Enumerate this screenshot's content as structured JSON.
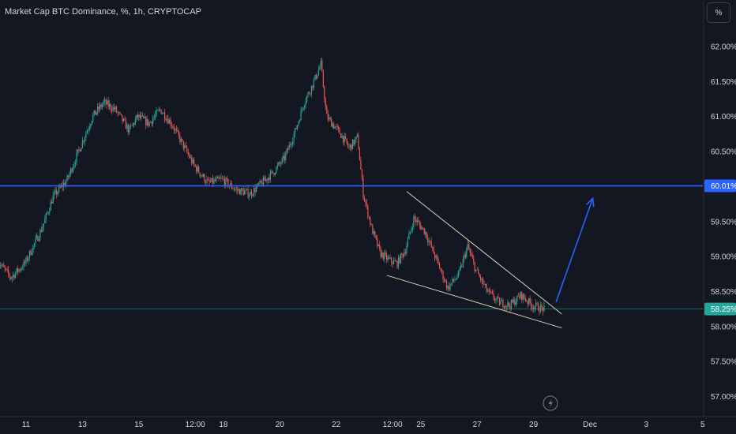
{
  "header": {
    "title": "Market Cap BTC Dominance, %, 1h, CRYPTOCAP"
  },
  "price_axis": {
    "unit_label": "%"
  },
  "colors": {
    "background": "#131722",
    "up": "#26a69a",
    "down": "#ef5350",
    "resistance_line": "#2962ff",
    "current_price_line": "#26a69a",
    "wedge_lines": "#d6cfb0",
    "arrow": "#2962ff",
    "grid": "#1e222d"
  },
  "icons": {
    "bottom": "lightning-icon"
  },
  "chart_data": {
    "type": "candlestick",
    "title": "Market Cap BTC Dominance, %, 1h, CRYPTOCAP",
    "ylabel": "%",
    "ylim": [
      56.9,
      62.25
    ],
    "y_ticks": [
      "62.00%",
      "61.50%",
      "61.00%",
      "60.50%",
      "60.00%",
      "59.50%",
      "59.00%",
      "58.50%",
      "58.00%",
      "57.50%",
      "57.00%"
    ],
    "y_tick_values": [
      62.0,
      61.5,
      61.0,
      60.5,
      60.0,
      59.5,
      59.0,
      58.5,
      58.0,
      57.5,
      57.0
    ],
    "x_ticks": [
      "11",
      "13",
      "15",
      "12:00",
      "18",
      "20",
      "22",
      "12:00",
      "25",
      "27",
      "29",
      "Dec",
      "3",
      "5"
    ],
    "x_tick_days": [
      11,
      13,
      15,
      17,
      18,
      20,
      22,
      24,
      25,
      27,
      29,
      31,
      33,
      35
    ],
    "price_trajectory": [
      {
        "day": 10.0,
        "value": 58.95
      },
      {
        "day": 10.5,
        "value": 58.7
      },
      {
        "day": 11.0,
        "value": 58.9
      },
      {
        "day": 11.6,
        "value": 59.4
      },
      {
        "day": 12.0,
        "value": 59.85
      },
      {
        "day": 12.5,
        "value": 60.1
      },
      {
        "day": 13.0,
        "value": 60.6
      },
      {
        "day": 13.4,
        "value": 61.0
      },
      {
        "day": 13.8,
        "value": 61.2
      },
      {
        "day": 14.2,
        "value": 61.1
      },
      {
        "day": 14.7,
        "value": 60.8
      },
      {
        "day": 15.0,
        "value": 61.0
      },
      {
        "day": 15.4,
        "value": 60.9
      },
      {
        "day": 15.8,
        "value": 61.1
      },
      {
        "day": 16.2,
        "value": 60.9
      },
      {
        "day": 16.6,
        "value": 60.6
      },
      {
        "day": 17.0,
        "value": 60.3
      },
      {
        "day": 17.5,
        "value": 60.05
      },
      {
        "day": 18.0,
        "value": 60.1
      },
      {
        "day": 18.5,
        "value": 59.95
      },
      {
        "day": 19.0,
        "value": 59.9
      },
      {
        "day": 19.4,
        "value": 60.05
      },
      {
        "day": 19.8,
        "value": 60.2
      },
      {
        "day": 20.2,
        "value": 60.4
      },
      {
        "day": 20.6,
        "value": 60.8
      },
      {
        "day": 20.9,
        "value": 61.2
      },
      {
        "day": 21.2,
        "value": 61.45
      },
      {
        "day": 21.5,
        "value": 61.75
      },
      {
        "day": 21.7,
        "value": 61.0
      },
      {
        "day": 21.9,
        "value": 60.9
      },
      {
        "day": 22.2,
        "value": 60.75
      },
      {
        "day": 22.5,
        "value": 60.55
      },
      {
        "day": 22.8,
        "value": 60.7
      },
      {
        "day": 23.0,
        "value": 59.9
      },
      {
        "day": 23.3,
        "value": 59.4
      },
      {
        "day": 23.6,
        "value": 59.05
      },
      {
        "day": 23.9,
        "value": 58.95
      },
      {
        "day": 24.2,
        "value": 58.9
      },
      {
        "day": 24.5,
        "value": 59.1
      },
      {
        "day": 24.8,
        "value": 59.55
      },
      {
        "day": 25.2,
        "value": 59.35
      },
      {
        "day": 25.6,
        "value": 58.95
      },
      {
        "day": 26.0,
        "value": 58.55
      },
      {
        "day": 26.4,
        "value": 58.75
      },
      {
        "day": 26.7,
        "value": 59.15
      },
      {
        "day": 27.0,
        "value": 58.8
      },
      {
        "day": 27.4,
        "value": 58.5
      },
      {
        "day": 27.8,
        "value": 58.35
      },
      {
        "day": 28.2,
        "value": 58.3
      },
      {
        "day": 28.6,
        "value": 58.45
      },
      {
        "day": 29.0,
        "value": 58.3
      },
      {
        "day": 29.4,
        "value": 58.25
      }
    ],
    "horizontal_levels": [
      {
        "value": 60.01,
        "label": "60.01%"
      },
      {
        "value": 58.25,
        "label": "58.25%"
      }
    ],
    "trendlines": [
      {
        "from": {
          "day": 24.5,
          "value": 59.93
        },
        "to": {
          "day": 30.0,
          "value": 58.18
        }
      },
      {
        "from": {
          "day": 23.8,
          "value": 58.73
        },
        "to": {
          "day": 30.0,
          "value": 57.98
        }
      }
    ],
    "arrow": {
      "from": {
        "day": 29.8,
        "value": 58.35
      },
      "to": {
        "day": 31.1,
        "value": 59.83
      }
    },
    "grid": false,
    "legend": "none"
  }
}
